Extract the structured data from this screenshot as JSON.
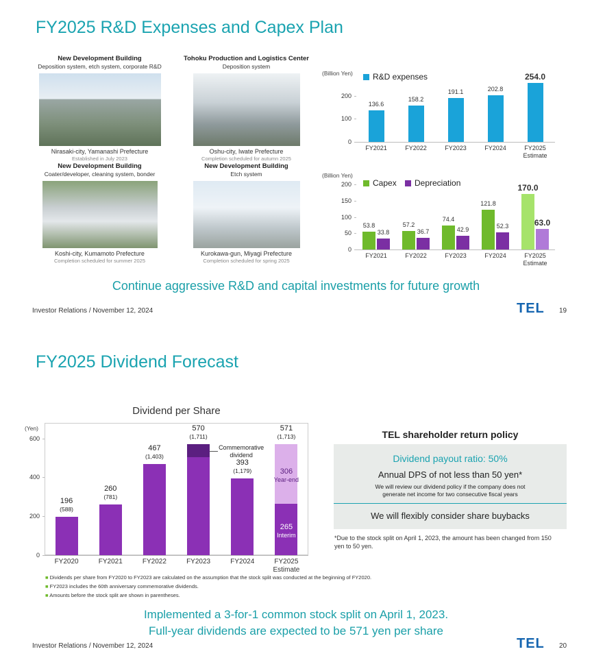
{
  "slide_1": {
    "title": "FY2025 R&D Expenses and Capex Plan",
    "buildings": [
      {
        "heading": "New Development Building",
        "subheading": "Deposition system, etch system, corporate R&D",
        "location": "Nirasaki-city, Yamanashi Prefecture",
        "note": "Established in July 2023"
      },
      {
        "heading": "Tohoku Production and Logistics Center",
        "subheading": "Deposition system",
        "location": "Oshu-city, Iwate Prefecture",
        "note": "Completion scheduled for autumn 2025"
      },
      {
        "heading": "New Development Building",
        "subheading": "Coater/developer, cleaning system, bonder",
        "location": "Koshi-city, Kumamoto Prefecture",
        "note": "Completion scheduled for summer 2025"
      },
      {
        "heading": "New Development Building",
        "subheading": "Etch system",
        "location": "Kurokawa-gun, Miyagi Prefecture",
        "note": "Completion scheduled for spring 2025"
      }
    ],
    "tagline": "Continue aggressive R&D and capital investments for future growth",
    "footer": "Investor Relations / November 12, 2024",
    "logo": "TEL",
    "page_number": 19
  },
  "slide_2": {
    "title": "FY2025 Dividend Forecast",
    "policy": {
      "heading": "TEL shareholder return policy",
      "payout_ratio": "Dividend payout ratio: 50%",
      "annual_dps": "Annual DPS of not less than 50 yen*",
      "review_note": "We will review our dividend policy if the company does not generate net income for two consecutive fiscal years",
      "buybacks": "We will flexibly consider share buybacks",
      "footnote": "*Due to the stock split on April 1, 2023, the amount has been changed from 150 yen to 50 yen."
    },
    "notes": [
      "Dividends per share from FY2020 to FY2023 are calculated on the assumption that the stock split was conducted at the beginning of FY2020.",
      "FY2023 includes the 60th anniversary commemorative dividends.",
      "Amounts before the stock split are shown in parentheses."
    ],
    "conclusion": [
      "Implemented a 3-for-1 common stock split on April 1, 2023.",
      "Full-year dividends are expected to be 571 yen per share"
    ],
    "footer": "Investor Relations / November 12, 2024",
    "logo": "TEL",
    "page_number": 20
  },
  "chart_data": [
    {
      "type": "bar",
      "unit": "(Billion Yen)",
      "legend": "top-left",
      "categories": [
        "FY2021",
        "FY2022",
        "FY2023",
        "FY2024",
        "FY2025 Estimate"
      ],
      "series": [
        {
          "name": "R&D expenses",
          "color": "#1aa3d9",
          "values": [
            136.6,
            158.2,
            191.1,
            202.8,
            254.0
          ],
          "value_labels": [
            "136.6",
            "158.2",
            "191.1",
            "202.8",
            "254.0"
          ]
        }
      ],
      "ylim": [
        0,
        300
      ],
      "yticks": [
        0,
        100,
        200
      ]
    },
    {
      "type": "bar",
      "unit": "(Billion Yen)",
      "legend": "top-left",
      "categories": [
        "FY2021",
        "FY2022",
        "FY2023",
        "FY2024",
        "FY2025 Estimate"
      ],
      "series": [
        {
          "name": "Capex",
          "color": "#6fba2c",
          "colors": [
            "#6fba2c",
            "#6fba2c",
            "#6fba2c",
            "#6fba2c",
            "#a6e36b"
          ],
          "values": [
            53.8,
            57.2,
            74.4,
            121.8,
            170.0
          ],
          "value_labels": [
            "53.8",
            "57.2",
            "74.4",
            "121.8",
            "170.0"
          ]
        },
        {
          "name": "Depreciation",
          "color": "#7b2fa3",
          "colors": [
            "#7b2fa3",
            "#7b2fa3",
            "#7b2fa3",
            "#7b2fa3",
            "#b07ad8"
          ],
          "values": [
            33.8,
            36.7,
            42.9,
            52.3,
            63.0
          ],
          "value_labels": [
            "33.8",
            "36.7",
            "42.9",
            "52.3",
            "63.0"
          ]
        }
      ],
      "ylim": [
        0,
        200
      ],
      "yticks": [
        0,
        50,
        100,
        150,
        200
      ]
    },
    {
      "type": "bar",
      "stacked": true,
      "frame": true,
      "title": "Dividend per Share",
      "unit": "(Yen)",
      "categories": [
        "FY2020",
        "FY2021",
        "FY2022",
        "FY2023",
        "FY2024",
        "FY2025 Estimate"
      ],
      "series": [
        {
          "color": "#8b30b5",
          "values": [
            196,
            260,
            467,
            503,
            393,
            null
          ]
        },
        {
          "name": "Commemorative dividend",
          "color": "#5b1f80",
          "values": [
            null,
            null,
            null,
            67,
            null,
            null
          ]
        },
        {
          "name": "Interim",
          "color": "#8b30b5",
          "values": [
            null,
            null,
            null,
            null,
            null,
            265
          ],
          "inside_labels": true,
          "label_color": "#ffffff"
        },
        {
          "name": "Year-end",
          "color": "#dcb0ea",
          "values": [
            null,
            null,
            null,
            null,
            null,
            306
          ],
          "inside_labels": true,
          "label_color": "#5b1f80"
        }
      ],
      "totals": [
        196,
        260,
        467,
        570,
        393,
        571
      ],
      "total_notes": [
        "(588)",
        "(781)",
        "(1,403)",
        "(1,711)",
        "(1,179)",
        "(1,713)"
      ],
      "ylim": [
        0,
        680
      ],
      "yticks": [
        0,
        200,
        400,
        600
      ]
    }
  ]
}
